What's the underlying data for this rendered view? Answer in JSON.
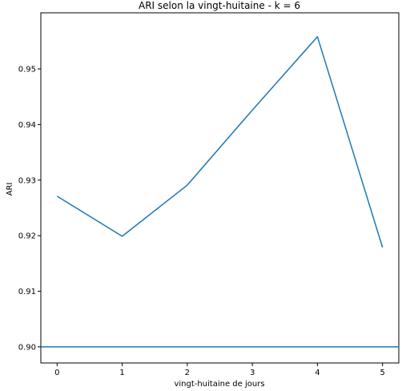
{
  "chart_data": {
    "type": "line",
    "title": "ARI selon la vingt-huitaine - k = 6",
    "xlabel": "vingt-huitaine de jours",
    "ylabel": "ARI",
    "x": [
      0,
      1,
      2,
      3,
      4,
      5
    ],
    "series": [
      {
        "values": [
          0.9271,
          0.9199,
          0.9291,
          0.9426,
          0.9558,
          0.9179
        ],
        "color": "#1f77b4"
      }
    ],
    "hline": {
      "value": 0.9,
      "color": "#1f77b4"
    },
    "xlim": [
      -0.25,
      5.25
    ],
    "ylim": [
      0.8971,
      0.9601
    ],
    "xticks": [
      0,
      1,
      2,
      3,
      4,
      5
    ],
    "xtick_labels": [
      "0",
      "1",
      "2",
      "3",
      "4",
      "5"
    ],
    "yticks": [
      0.9,
      0.91,
      0.92,
      0.93,
      0.94,
      0.95
    ],
    "ytick_labels": [
      "0.90",
      "0.91",
      "0.92",
      "0.93",
      "0.94",
      "0.95"
    ],
    "grid": false,
    "legend": false
  }
}
